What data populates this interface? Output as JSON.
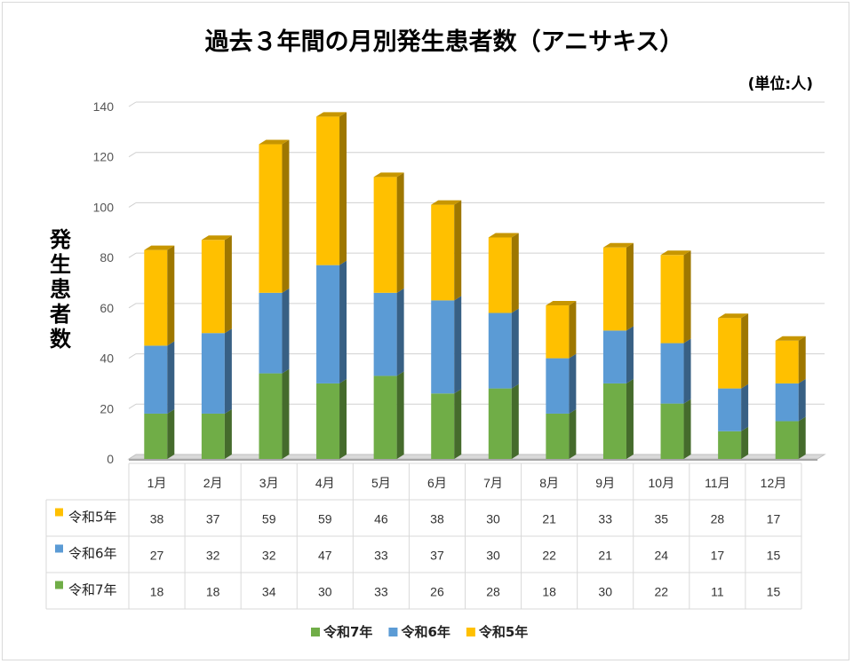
{
  "chart_data": {
    "type": "bar",
    "stacked": true,
    "title": "過去３年間の月別発生患者数（アニサキス）",
    "unit_label": "(単位:人)",
    "ylabel": "発生患者数",
    "ylim": [
      0,
      140
    ],
    "yticks": [
      0,
      20,
      40,
      60,
      80,
      100,
      120,
      140
    ],
    "grid": true,
    "legend_position": "bottom",
    "categories": [
      "1月",
      "2月",
      "3月",
      "4月",
      "5月",
      "6月",
      "7月",
      "8月",
      "9月",
      "10月",
      "11月",
      "12月"
    ],
    "series": [
      {
        "name": "令和7年",
        "color": "#70ad47",
        "values": [
          18,
          18,
          34,
          30,
          33,
          26,
          28,
          18,
          30,
          22,
          11,
          15
        ]
      },
      {
        "name": "令和6年",
        "color": "#5b9bd5",
        "values": [
          27,
          32,
          32,
          47,
          33,
          37,
          30,
          22,
          21,
          24,
          17,
          15
        ]
      },
      {
        "name": "令和5年",
        "color": "#ffc000",
        "values": [
          38,
          37,
          59,
          59,
          46,
          38,
          30,
          21,
          33,
          35,
          28,
          17
        ]
      }
    ],
    "table_row_order": [
      "令和5年",
      "令和6年",
      "令和7年"
    ]
  }
}
